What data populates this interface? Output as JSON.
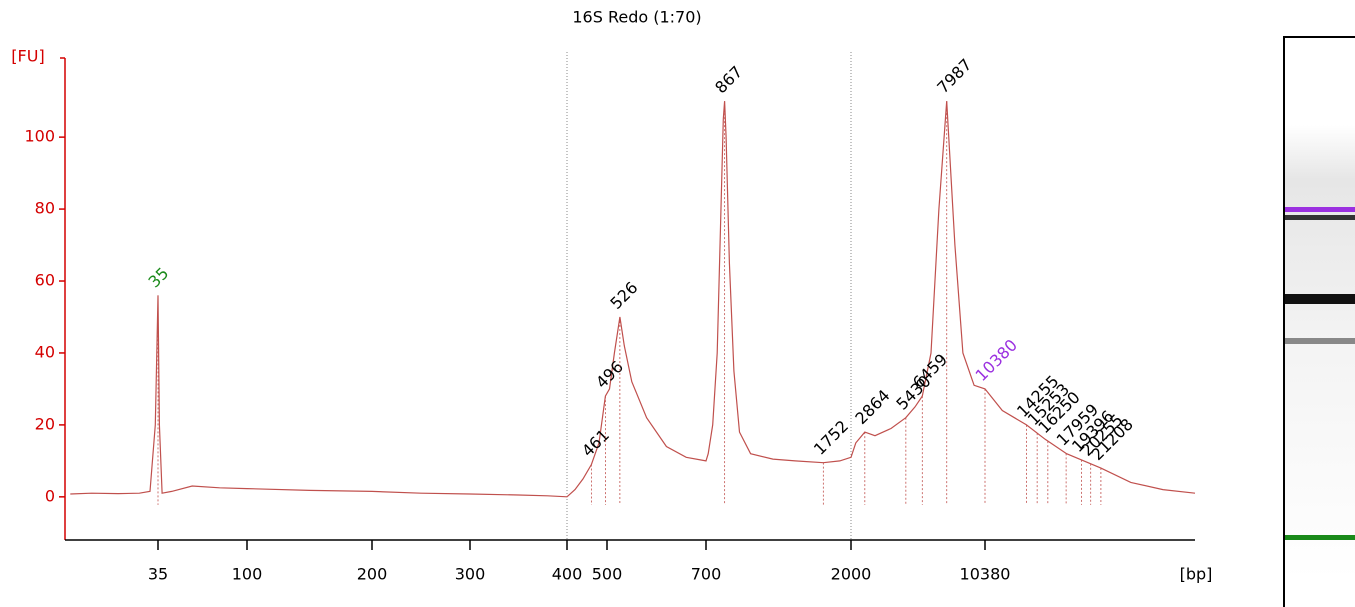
{
  "chart_data": {
    "type": "line",
    "title": "16S Redo (1:70)",
    "ylabel": "[FU]",
    "xlabel": "[bp]",
    "ylim": [
      -12,
      122
    ],
    "yticks": [
      0,
      20,
      40,
      60,
      80,
      100
    ],
    "xlim": [
      0,
      30000
    ],
    "xticks": [
      35,
      100,
      200,
      300,
      400,
      500,
      700,
      2000,
      10380
    ],
    "marker_lines": [
      400,
      2000
    ],
    "color": "#c0504d",
    "axis_color": "#d40000",
    "trace": {
      "x": [
        2,
        10,
        20,
        28,
        32,
        34,
        35,
        36,
        38,
        45,
        60,
        80,
        100,
        150,
        200,
        250,
        300,
        350,
        380,
        400,
        420,
        440,
        461,
        480,
        496,
        505,
        515,
        526,
        535,
        550,
        580,
        620,
        660,
        700,
        720,
        760,
        800,
        830,
        855,
        867,
        880,
        910,
        950,
        1000,
        1100,
        1300,
        1500,
        1752,
        1900,
        2000,
        2300,
        2864,
        3500,
        4500,
        5430,
        6000,
        6459,
        7000,
        7500,
        7987,
        8500,
        9000,
        9700,
        10380,
        12000,
        14255,
        16000,
        18000,
        21208,
        24000,
        27000,
        30000
      ],
      "values": [
        0.8,
        1,
        0.9,
        1,
        1.5,
        20,
        56,
        20,
        1,
        1.5,
        3,
        2.5,
        2.3,
        1.8,
        1.5,
        1,
        0.8,
        0.5,
        0.3,
        0,
        2,
        5,
        9,
        15,
        28,
        30,
        40,
        50,
        42,
        32,
        22,
        14,
        11,
        10,
        12,
        20,
        40,
        75,
        105,
        110,
        100,
        65,
        35,
        18,
        12,
        10.5,
        10,
        9.5,
        10,
        11,
        15,
        18,
        17,
        19,
        22,
        25,
        28,
        40,
        80,
        110,
        70,
        40,
        31,
        30,
        24,
        20,
        16,
        12,
        8,
        4,
        2,
        1
      ]
    },
    "peaks": [
      {
        "bp": 35,
        "color": "#1a8a1a"
      },
      {
        "bp": 461,
        "color": "#000000"
      },
      {
        "bp": 496,
        "color": "#000000"
      },
      {
        "bp": 526,
        "color": "#000000"
      },
      {
        "bp": 867,
        "color": "#000000"
      },
      {
        "bp": 1752,
        "color": "#000000"
      },
      {
        "bp": 2864,
        "color": "#000000"
      },
      {
        "bp": 5430,
        "color": "#000000"
      },
      {
        "bp": 6459,
        "color": "#000000"
      },
      {
        "bp": 7987,
        "color": "#000000"
      },
      {
        "bp": 10380,
        "color": "#9b30e0"
      },
      {
        "bp": 14255,
        "color": "#000000"
      },
      {
        "bp": 15253,
        "color": "#000000"
      },
      {
        "bp": 16250,
        "color": "#000000"
      },
      {
        "bp": 17959,
        "color": "#000000"
      },
      {
        "bp": 19396,
        "color": "#000000"
      },
      {
        "bp": 20255,
        "color": "#000000"
      },
      {
        "bp": 21208,
        "color": "#000000"
      }
    ]
  }
}
